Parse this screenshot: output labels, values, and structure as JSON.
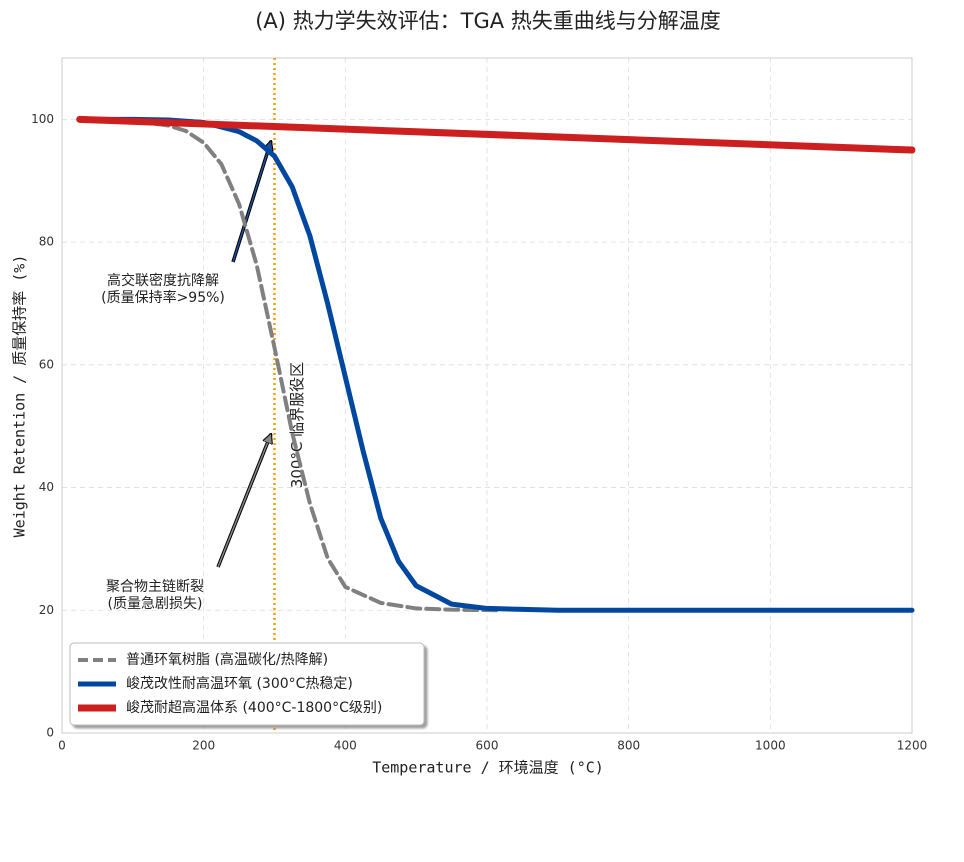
{
  "chart_data": {
    "type": "line",
    "title": "(A) 热力学失效评估：TGA 热失重曲线与分解温度",
    "x_label": "Temperature / 环境温度 (°C)",
    "y_label": "Weight Retention / 质量保持率 (%)",
    "xlim": [
      0,
      1200
    ],
    "ylim": [
      0,
      110
    ],
    "xticks": [
      0,
      200,
      400,
      600,
      800,
      1000,
      1200
    ],
    "yticks": [
      0,
      20,
      40,
      60,
      80,
      100
    ],
    "grid": true,
    "legend": "lower left",
    "series": [
      {
        "name": "普通环氧树脂 (高温碳化/热降解)",
        "color": "#808080",
        "dash": true,
        "x": [
          25,
          100,
          150,
          175,
          200,
          225,
          250,
          275,
          300,
          325,
          350,
          375,
          400,
          450,
          500,
          550,
          620
        ],
        "values": [
          100,
          99.8,
          99,
          98.1,
          96.2,
          92.7,
          86.2,
          76.2,
          62.8,
          48.9,
          37.4,
          28.5,
          23.8,
          21.2,
          20.3,
          20.1,
          20
        ]
      },
      {
        "name": "峻茂改性耐高温环氧 (300°C热稳定)",
        "color": "#0047a0",
        "dash": false,
        "x": [
          25,
          100,
          150,
          200,
          250,
          275,
          300,
          325,
          350,
          375,
          400,
          425,
          450,
          475,
          500,
          550,
          600,
          700,
          1200
        ],
        "values": [
          100,
          100,
          99.9,
          99.5,
          98,
          96.5,
          94,
          89,
          81,
          70,
          58,
          46,
          35,
          28,
          24,
          21,
          20.3,
          20,
          20
        ]
      },
      {
        "name": "峻茂耐超高温体系 (400°C-1800°C级别)",
        "color": "#cc1f1f",
        "dash": false,
        "x": [
          25,
          1200
        ],
        "values": [
          100,
          95
        ]
      }
    ],
    "vline": {
      "x": 300,
      "color": "#f0a000",
      "label": "300°C 临界服役区"
    },
    "annotations": [
      {
        "lines": [
          "高交联密度抗降解",
          "(质量保持率>95%)"
        ],
        "color": "#0b4f8a"
      },
      {
        "lines": [
          "聚合物主链断裂",
          "(质量急剧损失)"
        ],
        "color": "#888888"
      }
    ]
  }
}
